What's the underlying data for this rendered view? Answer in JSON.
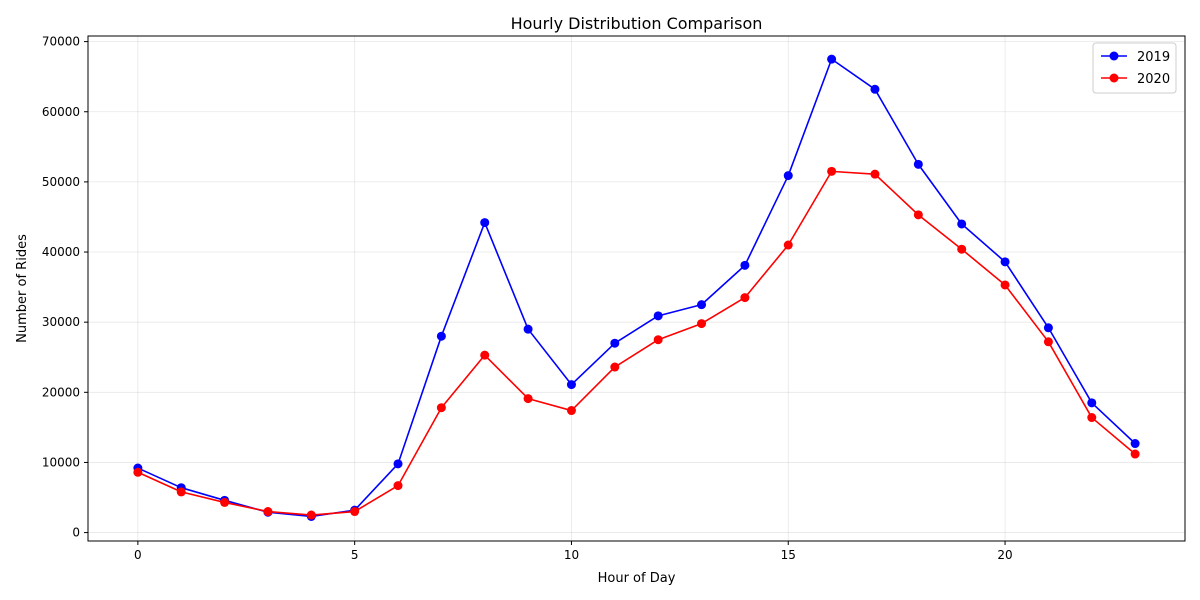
{
  "chart_data": {
    "type": "line",
    "title": "Hourly Distribution Comparison",
    "xlabel": "Hour of Day",
    "ylabel": "Number of Rides",
    "x": [
      0,
      1,
      2,
      3,
      4,
      5,
      6,
      7,
      8,
      9,
      10,
      11,
      12,
      13,
      14,
      15,
      16,
      17,
      18,
      19,
      20,
      21,
      22,
      23
    ],
    "xlim": [
      -1.15,
      24.15
    ],
    "ylim": [
      -1200,
      70800
    ],
    "x_ticks": [
      0,
      5,
      10,
      15,
      20
    ],
    "y_ticks": [
      0,
      10000,
      20000,
      30000,
      40000,
      50000,
      60000,
      70000
    ],
    "grid": true,
    "legend_position": "top-right",
    "series": [
      {
        "name": "2019",
        "color": "#0000ff",
        "values": [
          9200,
          6400,
          4600,
          2900,
          2300,
          3200,
          9800,
          28000,
          44200,
          29000,
          21100,
          27000,
          30900,
          32500,
          38100,
          50900,
          67500,
          63200,
          52500,
          44000,
          38600,
          29200,
          18500,
          12700
        ]
      },
      {
        "name": "2020",
        "color": "#ff0000",
        "values": [
          8600,
          5800,
          4300,
          3000,
          2500,
          3000,
          6700,
          17800,
          25300,
          19100,
          17400,
          23600,
          27500,
          29800,
          33500,
          41000,
          51500,
          51100,
          45300,
          40400,
          35300,
          27200,
          16400,
          11200
        ]
      }
    ]
  }
}
